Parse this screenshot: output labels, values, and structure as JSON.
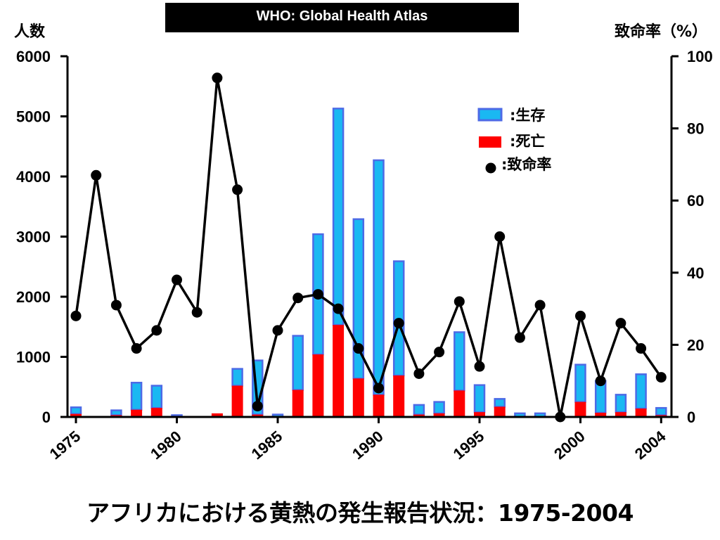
{
  "banner": {
    "text": "WHO: Global Health Atlas"
  },
  "caption": {
    "text": "アフリカにおける黄熱の発生報告状況：1975-2004"
  },
  "chart_data": {
    "type": "bar",
    "stacked": true,
    "combo": "bar+line",
    "title": "",
    "xlabel": "",
    "ylabel": "人数",
    "y2label": "致命率（%）",
    "ylim": [
      0,
      6000
    ],
    "y2lim": [
      0,
      100
    ],
    "yticks": [
      0,
      1000,
      2000,
      3000,
      4000,
      5000,
      6000
    ],
    "y2ticks": [
      0,
      20,
      40,
      60,
      80,
      100
    ],
    "x": [
      1975,
      1976,
      1977,
      1978,
      1979,
      1980,
      1981,
      1982,
      1983,
      1984,
      1985,
      1986,
      1987,
      1988,
      1989,
      1990,
      1991,
      1992,
      1993,
      1994,
      1995,
      1996,
      1997,
      1998,
      1999,
      2000,
      2001,
      2002,
      2003,
      2004
    ],
    "xtick_labels": [
      "1975",
      "1980",
      "1985",
      "1990",
      "1995",
      "2000",
      "2004"
    ],
    "legend_position": "top-right",
    "colors": {
      "survival": "#1ab8f2",
      "survival_border": "#4d6ae6",
      "death": "#ff0000",
      "cfr": "#000000"
    },
    "series": [
      {
        "name": "生存",
        "axis": "left",
        "kind": "bar",
        "values": [
          110,
          0,
          80,
          450,
          370,
          30,
          0,
          0,
          280,
          900,
          40,
          900,
          2000,
          3600,
          2650,
          3900,
          1900,
          160,
          190,
          970,
          450,
          130,
          60,
          60,
          0,
          620,
          530,
          290,
          570,
          120
        ]
      },
      {
        "name": "死亡",
        "axis": "left",
        "kind": "bar",
        "values": [
          50,
          0,
          30,
          120,
          150,
          0,
          0,
          60,
          520,
          40,
          0,
          450,
          1040,
          1530,
          640,
          370,
          690,
          40,
          60,
          440,
          80,
          170,
          0,
          0,
          0,
          250,
          70,
          80,
          140,
          30
        ]
      },
      {
        "name": "致命率",
        "axis": "right",
        "kind": "line",
        "values": [
          28,
          67,
          31,
          19,
          24,
          38,
          29,
          94,
          63,
          3,
          24,
          33,
          34,
          30,
          19,
          8,
          26,
          12,
          18,
          32,
          14,
          50,
          22,
          31,
          0,
          28,
          10,
          26,
          19,
          11
        ]
      }
    ]
  }
}
